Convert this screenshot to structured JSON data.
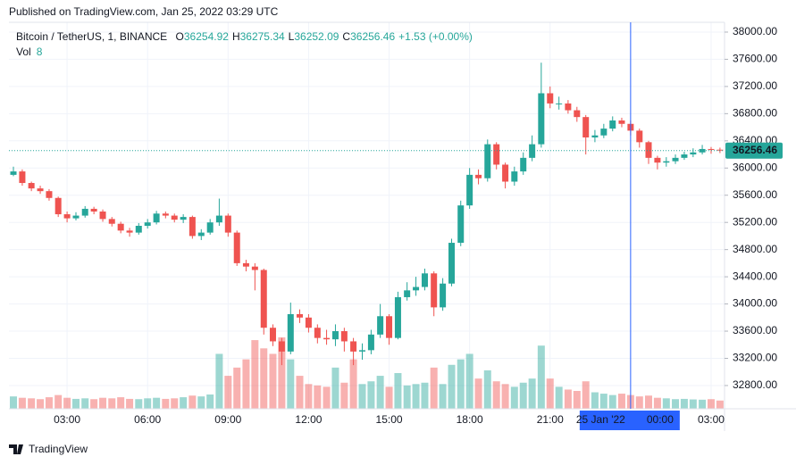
{
  "header": {
    "published": "Published on TradingView.com, Jan 25, 2022 03:29 UTC"
  },
  "legend": {
    "symbol": "Bitcoin / TetherUS, 1, BINANCE",
    "ohlc": [
      {
        "label": "O",
        "value": 36254.92
      },
      {
        "label": "H",
        "value": 36275.34
      },
      {
        "label": "L",
        "value": 36252.09
      },
      {
        "label": "C",
        "value": 36256.46
      }
    ],
    "change": "+1.53 (+0.00%)",
    "vol_label": "Vol",
    "vol_value": 8
  },
  "footer": {
    "brand": "TradingView"
  },
  "chart_data": {
    "type": "candlestick",
    "up_color": "#26a69a",
    "down_color": "#ef5350",
    "grid": true,
    "x": [
      1,
      1.33,
      1.67,
      2,
      2.33,
      2.67,
      3,
      3.33,
      3.67,
      4,
      4.33,
      4.67,
      5,
      5.33,
      5.67,
      6,
      6.33,
      6.67,
      7,
      7.33,
      7.67,
      8,
      8.33,
      8.67,
      9,
      9.33,
      9.67,
      10,
      10.33,
      10.67,
      11,
      11.33,
      11.67,
      12,
      12.33,
      12.67,
      13,
      13.33,
      13.67,
      14,
      14.33,
      14.67,
      15,
      15.33,
      15.67,
      16,
      16.33,
      16.67,
      17,
      17.33,
      17.67,
      18,
      18.33,
      18.67,
      19,
      19.33,
      19.67,
      20,
      20.33,
      20.67,
      21,
      21.33,
      21.67,
      22,
      22.33,
      22.67,
      23,
      23.33,
      23.67,
      24,
      24.33,
      24.67,
      25,
      25.33,
      25.67,
      26,
      26.33,
      26.67,
      27,
      27.33
    ],
    "open": [
      35900,
      35950,
      35780,
      35700,
      35660,
      35560,
      35320,
      35260,
      35300,
      35400,
      35360,
      35250,
      35180,
      35080,
      35050,
      35150,
      35200,
      35330,
      35300,
      35240,
      35280,
      35000,
      35050,
      35200,
      35300,
      35050,
      34600,
      34550,
      34500,
      33650,
      33450,
      33300,
      33850,
      33800,
      33650,
      33500,
      33480,
      33600,
      33450,
      33300,
      33320,
      33550,
      33820,
      33500,
      34100,
      34200,
      34250,
      34450,
      33950,
      34300,
      34900,
      35450,
      35900,
      35850,
      36350,
      36050,
      35800,
      35950,
      36150,
      36350,
      37100,
      36950,
      36950,
      36850,
      36750,
      36450,
      36480,
      36580,
      36700,
      36650,
      36550,
      36380,
      36150,
      36080,
      36100,
      36150,
      36200,
      36230,
      36280,
      36270
    ],
    "high": [
      36020,
      35980,
      35800,
      35740,
      35690,
      35580,
      35360,
      35350,
      35440,
      35430,
      35390,
      35280,
      35210,
      35120,
      35190,
      35250,
      35370,
      35360,
      35330,
      35320,
      35300,
      35100,
      35250,
      35550,
      35330,
      35080,
      34650,
      34600,
      34520,
      33700,
      33500,
      34020,
      33920,
      33850,
      33700,
      33620,
      33700,
      33650,
      33500,
      33420,
      33620,
      34000,
      33850,
      34180,
      34320,
      34400,
      34520,
      34480,
      34380,
      34960,
      35520,
      36000,
      35980,
      36420,
      36380,
      36080,
      36020,
      36230,
      36480,
      37550,
      37200,
      37050,
      37000,
      36900,
      36780,
      36560,
      36650,
      36760,
      36740,
      36700,
      36580,
      36400,
      36180,
      36160,
      36200,
      36240,
      36290,
      36340,
      36310,
      36300
    ],
    "low": [
      35880,
      35740,
      35660,
      35620,
      35520,
      35280,
      35200,
      35230,
      35270,
      35320,
      35210,
      35140,
      35040,
      34990,
      35020,
      35110,
      35170,
      35260,
      35200,
      35190,
      34960,
      34940,
      35020,
      35150,
      34990,
      34560,
      34480,
      34200,
      33550,
      33380,
      33100,
      33260,
      33720,
      33580,
      33420,
      33400,
      33380,
      33300,
      33100,
      33180,
      33260,
      33500,
      33400,
      33480,
      34050,
      34120,
      34200,
      33820,
      33900,
      34260,
      34850,
      35400,
      35760,
      35800,
      35980,
      35700,
      35740,
      35900,
      36100,
      36300,
      36880,
      36860,
      36800,
      36680,
      36200,
      36380,
      36440,
      36540,
      36600,
      36480,
      36300,
      36060,
      35980,
      36020,
      36060,
      36120,
      36160,
      36200,
      36210,
      36220
    ],
    "close": [
      35950,
      35780,
      35700,
      35660,
      35560,
      35320,
      35260,
      35300,
      35400,
      35360,
      35250,
      35180,
      35080,
      35050,
      35150,
      35200,
      35330,
      35300,
      35240,
      35280,
      35000,
      35050,
      35200,
      35300,
      35050,
      34600,
      34550,
      34500,
      33650,
      33450,
      33300,
      33850,
      33800,
      33650,
      33500,
      33480,
      33600,
      33450,
      33300,
      33320,
      33550,
      33820,
      33500,
      34100,
      34200,
      34250,
      34450,
      33950,
      34300,
      34900,
      35450,
      35900,
      35850,
      36350,
      36050,
      35800,
      35950,
      36150,
      36350,
      37100,
      36950,
      36950,
      36850,
      36750,
      36450,
      36480,
      36580,
      36700,
      36650,
      36550,
      36380,
      36150,
      36080,
      36100,
      36150,
      36200,
      36230,
      36280,
      36270,
      36256.46
    ],
    "volume": [
      45,
      40,
      38,
      35,
      42,
      50,
      40,
      36,
      38,
      35,
      40,
      38,
      42,
      36,
      35,
      38,
      40,
      36,
      38,
      42,
      48,
      45,
      52,
      200,
      120,
      150,
      180,
      250,
      220,
      200,
      260,
      180,
      120,
      90,
      85,
      80,
      150,
      95,
      180,
      90,
      100,
      120,
      80,
      130,
      85,
      90,
      95,
      150,
      90,
      160,
      180,
      200,
      110,
      140,
      100,
      90,
      80,
      95,
      110,
      230,
      110,
      80,
      70,
      65,
      100,
      60,
      55,
      50,
      55,
      50,
      45,
      48,
      40,
      38,
      35,
      36,
      34,
      33,
      35,
      30
    ],
    "xlim": [
      0.833,
      27.5
    ],
    "ylim": [
      32458,
      38144
    ],
    "xticks": [
      {
        "value": 3,
        "label": "03:00"
      },
      {
        "value": 6,
        "label": "06:00"
      },
      {
        "value": 9,
        "label": "09:00"
      },
      {
        "value": 12,
        "label": "12:00"
      },
      {
        "value": 15,
        "label": "15:00"
      },
      {
        "value": 18,
        "label": "18:00"
      },
      {
        "value": 21,
        "label": "21:00"
      },
      {
        "value": 27,
        "label": "03:00"
      }
    ],
    "yticks": [
      {
        "value": 32800,
        "label": "32800.00"
      },
      {
        "value": 33200,
        "label": "33200.00"
      },
      {
        "value": 33600,
        "label": "33600.00"
      },
      {
        "value": 34000,
        "label": "34000.00"
      },
      {
        "value": 34400,
        "label": "34400.00"
      },
      {
        "value": 34800,
        "label": "34800.00"
      },
      {
        "value": 35200,
        "label": "35200.00"
      },
      {
        "value": 35600,
        "label": "35600.00"
      },
      {
        "value": 36000,
        "label": "36000.00"
      },
      {
        "value": 36400,
        "label": "36400.00"
      },
      {
        "value": 36800,
        "label": "36800.00"
      },
      {
        "value": 37200,
        "label": "37200.00"
      },
      {
        "value": 37600,
        "label": "37600.00"
      },
      {
        "value": 38000,
        "label": "38000.00"
      }
    ],
    "last_price": 36256.46,
    "last_price_color": "#26a69a",
    "crosshair": {
      "x": 24,
      "date": "25 Jan '22",
      "time": "00:00",
      "color": "#2962ff"
    }
  }
}
